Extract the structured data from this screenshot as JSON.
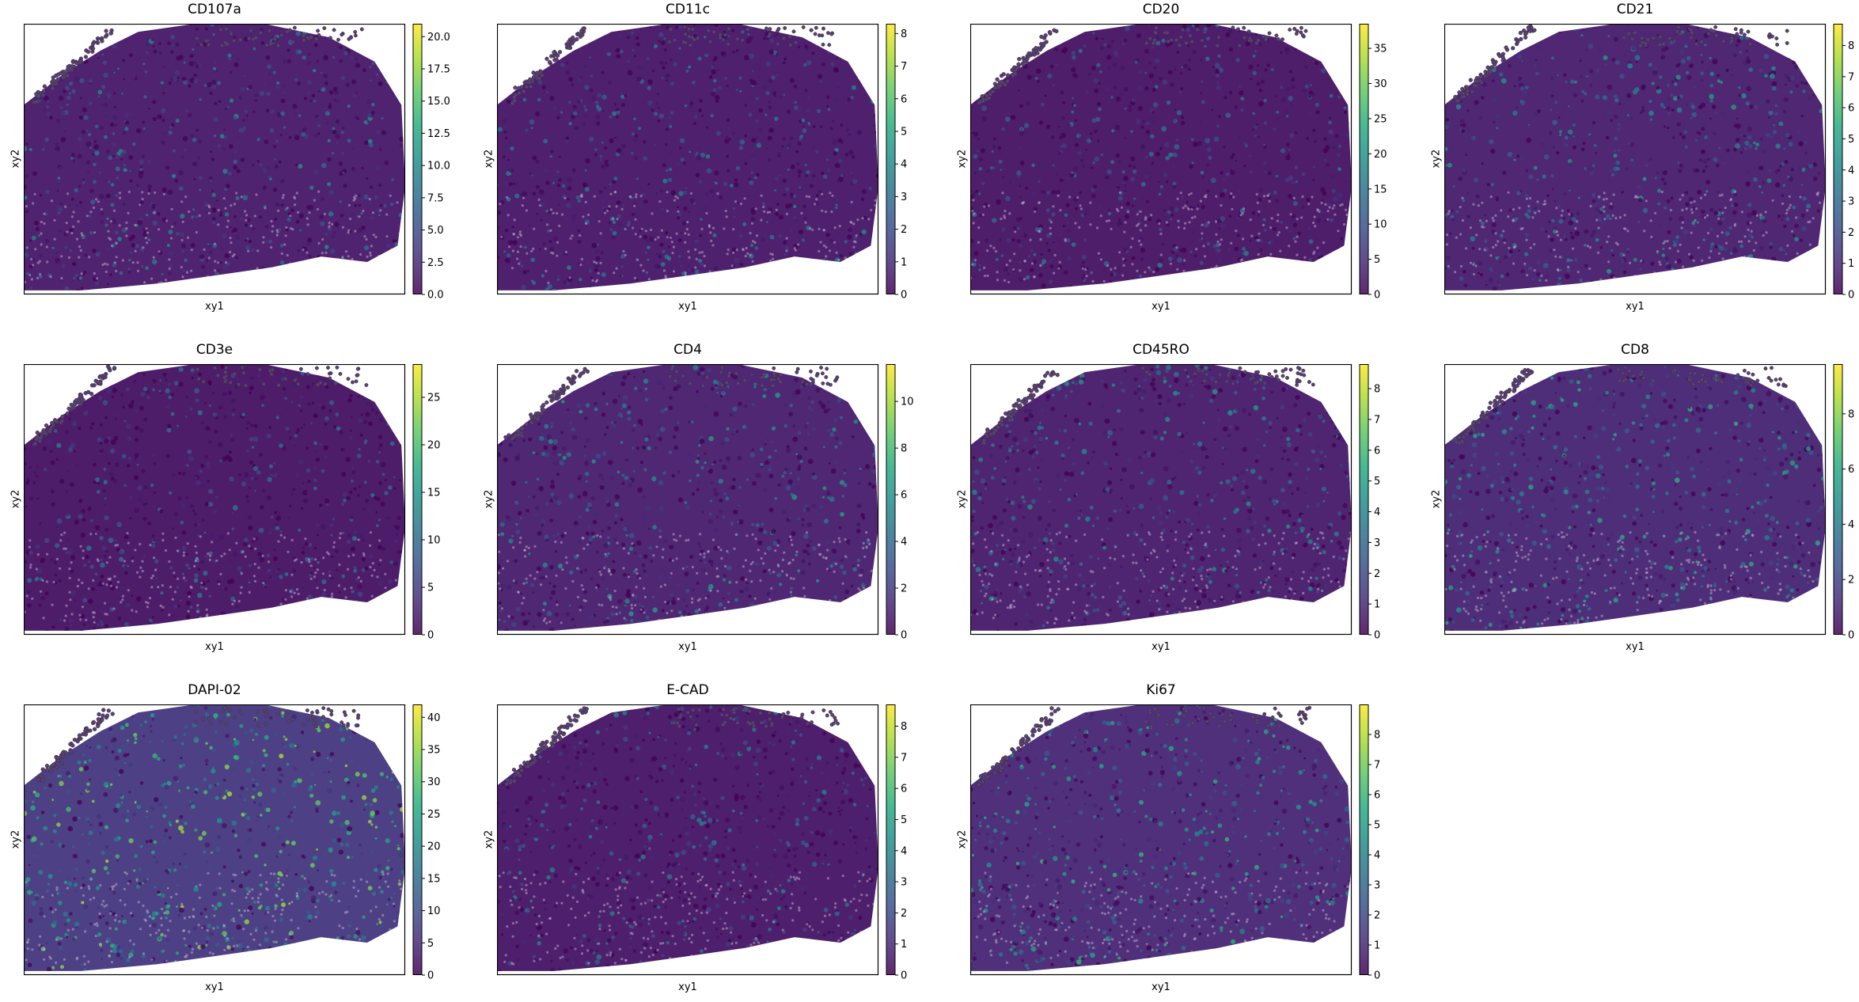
{
  "chart_data": [
    {
      "type": "heatmap",
      "title": "CD107a",
      "xlabel": "xy1",
      "ylabel": "xy2",
      "colorbar": {
        "vmin": 0,
        "vmax": 21.0,
        "ticks": [
          "0.0",
          "2.5",
          "5.0",
          "7.5",
          "10.0",
          "12.5",
          "15.0",
          "17.5",
          "20.0"
        ],
        "tick_values": [
          0,
          2.5,
          5,
          7.5,
          10,
          12.5,
          15,
          17.5,
          20
        ]
      },
      "intensity": 0.18
    },
    {
      "type": "heatmap",
      "title": "CD11c",
      "xlabel": "xy1",
      "ylabel": "xy2",
      "colorbar": {
        "vmin": 0,
        "vmax": 8.3,
        "ticks": [
          "0",
          "1",
          "2",
          "3",
          "4",
          "5",
          "6",
          "7",
          "8"
        ],
        "tick_values": [
          0,
          1,
          2,
          3,
          4,
          5,
          6,
          7,
          8
        ]
      },
      "intensity": 0.16
    },
    {
      "type": "heatmap",
      "title": "CD20",
      "xlabel": "xy1",
      "ylabel": "xy2",
      "colorbar": {
        "vmin": 0,
        "vmax": 38.5,
        "ticks": [
          "0",
          "5",
          "10",
          "15",
          "20",
          "25",
          "30",
          "35"
        ],
        "tick_values": [
          0,
          5,
          10,
          15,
          20,
          25,
          30,
          35
        ]
      },
      "intensity": 0.14
    },
    {
      "type": "heatmap",
      "title": "CD21",
      "xlabel": "xy1",
      "ylabel": "xy2",
      "colorbar": {
        "vmin": 0,
        "vmax": 8.7,
        "ticks": [
          "0",
          "1",
          "2",
          "3",
          "4",
          "5",
          "6",
          "7",
          "8"
        ],
        "tick_values": [
          0,
          1,
          2,
          3,
          4,
          5,
          6,
          7,
          8
        ]
      },
      "intensity": 0.22
    },
    {
      "type": "heatmap",
      "title": "CD3e",
      "xlabel": "xy1",
      "ylabel": "xy2",
      "colorbar": {
        "vmin": 0,
        "vmax": 28.5,
        "ticks": [
          "0",
          "5",
          "10",
          "15",
          "20",
          "25"
        ],
        "tick_values": [
          0,
          5,
          10,
          15,
          20,
          25
        ]
      },
      "intensity": 0.13
    },
    {
      "type": "heatmap",
      "title": "CD4",
      "xlabel": "xy1",
      "ylabel": "xy2",
      "colorbar": {
        "vmin": 0,
        "vmax": 11.6,
        "ticks": [
          "0",
          "2",
          "4",
          "6",
          "8",
          "10"
        ],
        "tick_values": [
          0,
          2,
          4,
          6,
          8,
          10
        ]
      },
      "intensity": 0.22
    },
    {
      "type": "heatmap",
      "title": "CD45RO",
      "xlabel": "xy1",
      "ylabel": "xy2",
      "colorbar": {
        "vmin": 0,
        "vmax": 8.8,
        "ticks": [
          "0",
          "1",
          "2",
          "3",
          "4",
          "5",
          "6",
          "7",
          "8"
        ],
        "tick_values": [
          0,
          1,
          2,
          3,
          4,
          5,
          6,
          7,
          8
        ]
      },
      "intensity": 0.2
    },
    {
      "type": "heatmap",
      "title": "CD8",
      "xlabel": "xy1",
      "ylabel": "xy2",
      "colorbar": {
        "vmin": 0,
        "vmax": 9.8,
        "ticks": [
          "0",
          "2",
          "4",
          "6",
          "8"
        ],
        "tick_values": [
          0,
          2,
          4,
          6,
          8
        ]
      },
      "intensity": 0.28
    },
    {
      "type": "heatmap",
      "title": "DAPI-02",
      "xlabel": "xy1",
      "ylabel": "xy2",
      "colorbar": {
        "vmin": 0,
        "vmax": 42,
        "ticks": [
          "0",
          "5",
          "10",
          "15",
          "20",
          "25",
          "30",
          "35",
          "40"
        ],
        "tick_values": [
          0,
          5,
          10,
          15,
          20,
          25,
          30,
          35,
          40
        ]
      },
      "intensity": 0.45
    },
    {
      "type": "heatmap",
      "title": "E-CAD",
      "xlabel": "xy1",
      "ylabel": "xy2",
      "colorbar": {
        "vmin": 0,
        "vmax": 8.7,
        "ticks": [
          "0",
          "1",
          "2",
          "3",
          "4",
          "5",
          "6",
          "7",
          "8"
        ],
        "tick_values": [
          0,
          1,
          2,
          3,
          4,
          5,
          6,
          7,
          8
        ]
      },
      "intensity": 0.15
    },
    {
      "type": "heatmap",
      "title": "Ki67",
      "xlabel": "xy1",
      "ylabel": "xy2",
      "colorbar": {
        "vmin": 0,
        "vmax": 9.0,
        "ticks": [
          "0",
          "1",
          "2",
          "3",
          "4",
          "5",
          "6",
          "7",
          "8"
        ],
        "tick_values": [
          0,
          1,
          2,
          3,
          4,
          5,
          6,
          7,
          8
        ]
      },
      "intensity": 0.3
    }
  ],
  "colormap": "viridis"
}
